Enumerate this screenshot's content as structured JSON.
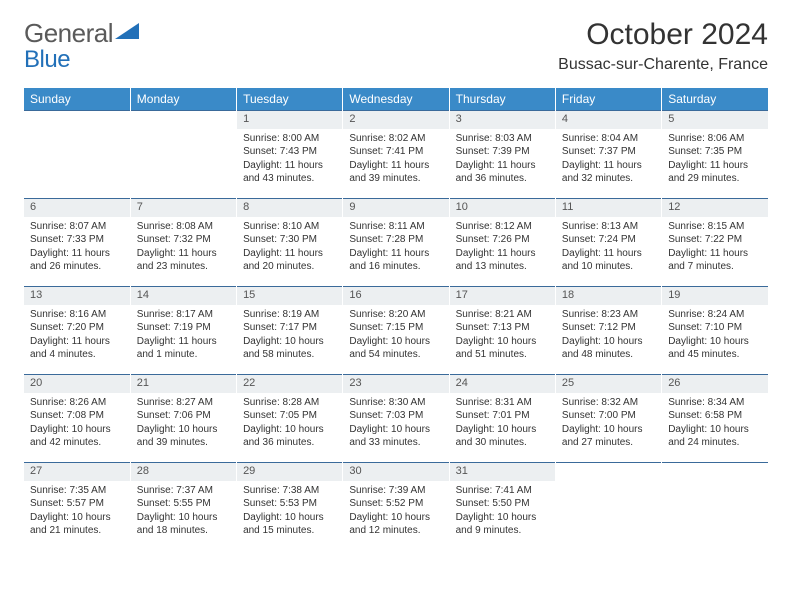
{
  "logo": {
    "part1": "General",
    "part2": "Blue"
  },
  "title": "October 2024",
  "location": "Bussac-sur-Charente, France",
  "colors": {
    "header_bg": "#3a8ac8",
    "header_text": "#ffffff",
    "daynum_bg": "#eceff1",
    "border": "#3a6a9a",
    "logo_gray": "#5a5a5a",
    "logo_blue": "#2270b8"
  },
  "weekdays": [
    "Sunday",
    "Monday",
    "Tuesday",
    "Wednesday",
    "Thursday",
    "Friday",
    "Saturday"
  ],
  "weeks": [
    [
      null,
      null,
      {
        "n": "1",
        "sr": "Sunrise: 8:00 AM",
        "ss": "Sunset: 7:43 PM",
        "dl": "Daylight: 11 hours and 43 minutes."
      },
      {
        "n": "2",
        "sr": "Sunrise: 8:02 AM",
        "ss": "Sunset: 7:41 PM",
        "dl": "Daylight: 11 hours and 39 minutes."
      },
      {
        "n": "3",
        "sr": "Sunrise: 8:03 AM",
        "ss": "Sunset: 7:39 PM",
        "dl": "Daylight: 11 hours and 36 minutes."
      },
      {
        "n": "4",
        "sr": "Sunrise: 8:04 AM",
        "ss": "Sunset: 7:37 PM",
        "dl": "Daylight: 11 hours and 32 minutes."
      },
      {
        "n": "5",
        "sr": "Sunrise: 8:06 AM",
        "ss": "Sunset: 7:35 PM",
        "dl": "Daylight: 11 hours and 29 minutes."
      }
    ],
    [
      {
        "n": "6",
        "sr": "Sunrise: 8:07 AM",
        "ss": "Sunset: 7:33 PM",
        "dl": "Daylight: 11 hours and 26 minutes."
      },
      {
        "n": "7",
        "sr": "Sunrise: 8:08 AM",
        "ss": "Sunset: 7:32 PM",
        "dl": "Daylight: 11 hours and 23 minutes."
      },
      {
        "n": "8",
        "sr": "Sunrise: 8:10 AM",
        "ss": "Sunset: 7:30 PM",
        "dl": "Daylight: 11 hours and 20 minutes."
      },
      {
        "n": "9",
        "sr": "Sunrise: 8:11 AM",
        "ss": "Sunset: 7:28 PM",
        "dl": "Daylight: 11 hours and 16 minutes."
      },
      {
        "n": "10",
        "sr": "Sunrise: 8:12 AM",
        "ss": "Sunset: 7:26 PM",
        "dl": "Daylight: 11 hours and 13 minutes."
      },
      {
        "n": "11",
        "sr": "Sunrise: 8:13 AM",
        "ss": "Sunset: 7:24 PM",
        "dl": "Daylight: 11 hours and 10 minutes."
      },
      {
        "n": "12",
        "sr": "Sunrise: 8:15 AM",
        "ss": "Sunset: 7:22 PM",
        "dl": "Daylight: 11 hours and 7 minutes."
      }
    ],
    [
      {
        "n": "13",
        "sr": "Sunrise: 8:16 AM",
        "ss": "Sunset: 7:20 PM",
        "dl": "Daylight: 11 hours and 4 minutes."
      },
      {
        "n": "14",
        "sr": "Sunrise: 8:17 AM",
        "ss": "Sunset: 7:19 PM",
        "dl": "Daylight: 11 hours and 1 minute."
      },
      {
        "n": "15",
        "sr": "Sunrise: 8:19 AM",
        "ss": "Sunset: 7:17 PM",
        "dl": "Daylight: 10 hours and 58 minutes."
      },
      {
        "n": "16",
        "sr": "Sunrise: 8:20 AM",
        "ss": "Sunset: 7:15 PM",
        "dl": "Daylight: 10 hours and 54 minutes."
      },
      {
        "n": "17",
        "sr": "Sunrise: 8:21 AM",
        "ss": "Sunset: 7:13 PM",
        "dl": "Daylight: 10 hours and 51 minutes."
      },
      {
        "n": "18",
        "sr": "Sunrise: 8:23 AM",
        "ss": "Sunset: 7:12 PM",
        "dl": "Daylight: 10 hours and 48 minutes."
      },
      {
        "n": "19",
        "sr": "Sunrise: 8:24 AM",
        "ss": "Sunset: 7:10 PM",
        "dl": "Daylight: 10 hours and 45 minutes."
      }
    ],
    [
      {
        "n": "20",
        "sr": "Sunrise: 8:26 AM",
        "ss": "Sunset: 7:08 PM",
        "dl": "Daylight: 10 hours and 42 minutes."
      },
      {
        "n": "21",
        "sr": "Sunrise: 8:27 AM",
        "ss": "Sunset: 7:06 PM",
        "dl": "Daylight: 10 hours and 39 minutes."
      },
      {
        "n": "22",
        "sr": "Sunrise: 8:28 AM",
        "ss": "Sunset: 7:05 PM",
        "dl": "Daylight: 10 hours and 36 minutes."
      },
      {
        "n": "23",
        "sr": "Sunrise: 8:30 AM",
        "ss": "Sunset: 7:03 PM",
        "dl": "Daylight: 10 hours and 33 minutes."
      },
      {
        "n": "24",
        "sr": "Sunrise: 8:31 AM",
        "ss": "Sunset: 7:01 PM",
        "dl": "Daylight: 10 hours and 30 minutes."
      },
      {
        "n": "25",
        "sr": "Sunrise: 8:32 AM",
        "ss": "Sunset: 7:00 PM",
        "dl": "Daylight: 10 hours and 27 minutes."
      },
      {
        "n": "26",
        "sr": "Sunrise: 8:34 AM",
        "ss": "Sunset: 6:58 PM",
        "dl": "Daylight: 10 hours and 24 minutes."
      }
    ],
    [
      {
        "n": "27",
        "sr": "Sunrise: 7:35 AM",
        "ss": "Sunset: 5:57 PM",
        "dl": "Daylight: 10 hours and 21 minutes."
      },
      {
        "n": "28",
        "sr": "Sunrise: 7:37 AM",
        "ss": "Sunset: 5:55 PM",
        "dl": "Daylight: 10 hours and 18 minutes."
      },
      {
        "n": "29",
        "sr": "Sunrise: 7:38 AM",
        "ss": "Sunset: 5:53 PM",
        "dl": "Daylight: 10 hours and 15 minutes."
      },
      {
        "n": "30",
        "sr": "Sunrise: 7:39 AM",
        "ss": "Sunset: 5:52 PM",
        "dl": "Daylight: 10 hours and 12 minutes."
      },
      {
        "n": "31",
        "sr": "Sunrise: 7:41 AM",
        "ss": "Sunset: 5:50 PM",
        "dl": "Daylight: 10 hours and 9 minutes."
      },
      null,
      null
    ]
  ]
}
